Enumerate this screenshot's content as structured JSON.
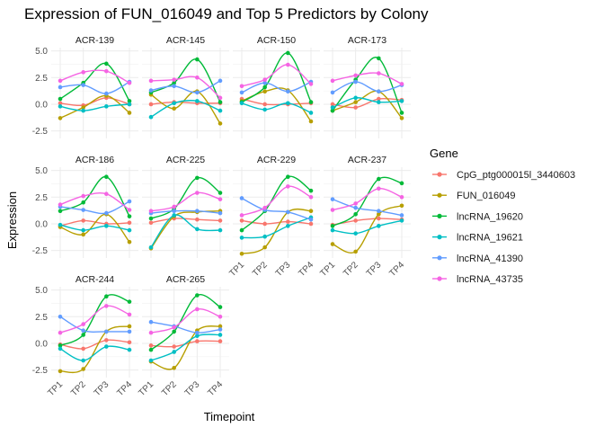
{
  "chart_data": {
    "type": "line",
    "title": "Expression of FUN_016049 and Top 5 Predictors by Colony",
    "xlabel": "Timepoint",
    "ylabel": "Expression",
    "x": [
      "TP1",
      "TP2",
      "TP3",
      "TP4"
    ],
    "ylim": [
      -3.2,
      5.3
    ],
    "yticks": [
      -2.5,
      0.0,
      2.5,
      5.0
    ],
    "ytick_labels": [
      "-2.5",
      "0.0",
      "2.5",
      "5.0"
    ],
    "grid": true,
    "legend_title": "Gene",
    "legend_position": "right",
    "genes": [
      {
        "name": "CpG_ptg000015l_3440603",
        "color": "#F8766D"
      },
      {
        "name": "FUN_016049",
        "color": "#B79F00"
      },
      {
        "name": "lncRNA_19620",
        "color": "#00BA38"
      },
      {
        "name": "lncRNA_19621",
        "color": "#00BFC4"
      },
      {
        "name": "lncRNA_41390",
        "color": "#619CFF"
      },
      {
        "name": "lncRNA_43735",
        "color": "#F564E3"
      }
    ],
    "panels": [
      {
        "colony": "ACR-139",
        "series": {
          "CpG_ptg000015l_3440603": [
            0.1,
            -0.1,
            0.6,
            0.0
          ],
          "FUN_016049": [
            -1.3,
            -0.3,
            0.8,
            -0.8
          ],
          "lncRNA_19620": [
            0.5,
            2.0,
            3.8,
            0.3
          ],
          "lncRNA_19621": [
            -0.2,
            -0.6,
            -0.2,
            0.0
          ],
          "lncRNA_41390": [
            1.6,
            1.8,
            1.0,
            2.1
          ],
          "lncRNA_43735": [
            2.2,
            3.0,
            3.1,
            2.0
          ]
        }
      },
      {
        "colony": "ACR-145",
        "series": {
          "CpG_ptg000015l_3440603": [
            0.0,
            0.2,
            0.1,
            0.1
          ],
          "FUN_016049": [
            0.9,
            -0.4,
            1.2,
            -1.8
          ],
          "lncRNA_19620": [
            1.1,
            2.0,
            4.2,
            0.2
          ],
          "lncRNA_19621": [
            -1.2,
            0.1,
            0.3,
            -0.6
          ],
          "lncRNA_41390": [
            1.3,
            1.7,
            1.1,
            2.2
          ],
          "lncRNA_43735": [
            2.2,
            2.3,
            2.5,
            0.6
          ]
        }
      },
      {
        "colony": "ACR-150",
        "series": {
          "CpG_ptg000015l_3440603": [
            0.5,
            0.0,
            0.0,
            0.1
          ],
          "FUN_016049": [
            0.3,
            1.2,
            1.3,
            -1.6
          ],
          "lncRNA_19620": [
            0.2,
            1.6,
            4.8,
            0.2
          ],
          "lncRNA_19621": [
            0.1,
            -0.5,
            0.1,
            -0.8
          ],
          "lncRNA_41390": [
            1.1,
            2.0,
            1.2,
            2.1
          ],
          "lncRNA_43735": [
            1.7,
            2.3,
            3.7,
            1.9
          ]
        }
      },
      {
        "colony": "ACR-173",
        "series": {
          "CpG_ptg000015l_3440603": [
            0.0,
            -0.3,
            0.5,
            0.4
          ],
          "FUN_016049": [
            -0.6,
            0.2,
            1.2,
            -1.3
          ],
          "lncRNA_19620": [
            -0.6,
            2.3,
            4.3,
            -0.8
          ],
          "lncRNA_19621": [
            -0.3,
            0.6,
            0.2,
            0.3
          ],
          "lncRNA_41390": [
            1.1,
            2.1,
            1.2,
            1.8
          ],
          "lncRNA_43735": [
            2.2,
            2.7,
            2.9,
            1.9
          ]
        }
      },
      {
        "colony": "ACR-186",
        "series": {
          "CpG_ptg000015l_3440603": [
            -0.2,
            0.3,
            0.0,
            0.1
          ],
          "FUN_016049": [
            -0.3,
            -1.0,
            0.9,
            -1.7
          ],
          "lncRNA_19620": [
            1.2,
            2.0,
            4.4,
            0.7
          ],
          "lncRNA_19621": [
            -0.1,
            -0.6,
            -0.2,
            -0.6
          ],
          "lncRNA_41390": [
            1.6,
            1.3,
            1.0,
            2.1
          ],
          "lncRNA_43735": [
            1.8,
            2.6,
            2.8,
            1.3
          ]
        }
      },
      {
        "colony": "ACR-225",
        "series": {
          "CpG_ptg000015l_3440603": [
            0.1,
            0.5,
            0.4,
            0.3
          ],
          "FUN_016049": [
            -2.3,
            0.7,
            1.1,
            1.2
          ],
          "lncRNA_19620": [
            0.5,
            1.4,
            4.3,
            2.9
          ],
          "lncRNA_19621": [
            -2.2,
            0.8,
            -0.5,
            -0.6
          ],
          "lncRNA_41390": [
            1.0,
            1.2,
            1.2,
            1.0
          ],
          "lncRNA_43735": [
            1.2,
            1.6,
            2.9,
            2.3
          ]
        }
      },
      {
        "colony": "ACR-229",
        "series": {
          "CpG_ptg000015l_3440603": [
            0.3,
            0.0,
            0.2,
            0.0
          ],
          "FUN_016049": [
            -2.8,
            -2.2,
            1.1,
            1.2
          ],
          "lncRNA_19620": [
            -0.6,
            1.2,
            4.4,
            3.1
          ],
          "lncRNA_19621": [
            -1.3,
            -1.2,
            -0.2,
            0.6
          ],
          "lncRNA_41390": [
            2.4,
            1.3,
            1.1,
            0.4
          ],
          "lncRNA_43735": [
            0.8,
            1.5,
            3.5,
            2.5
          ]
        }
      },
      {
        "colony": "ACR-237",
        "series": {
          "CpG_ptg000015l_3440603": [
            -0.1,
            0.3,
            0.5,
            0.4
          ],
          "FUN_016049": [
            -1.9,
            -2.6,
            0.9,
            1.7
          ],
          "lncRNA_19620": [
            -0.2,
            0.9,
            4.2,
            3.8
          ],
          "lncRNA_19621": [
            -0.6,
            -0.9,
            -0.2,
            0.3
          ],
          "lncRNA_41390": [
            2.3,
            1.5,
            1.2,
            0.8
          ],
          "lncRNA_43735": [
            1.3,
            1.9,
            3.3,
            2.5
          ]
        }
      },
      {
        "colony": "ACR-244",
        "series": {
          "CpG_ptg000015l_3440603": [
            -0.1,
            -0.5,
            0.3,
            0.1
          ],
          "FUN_016049": [
            -2.6,
            -2.4,
            1.1,
            1.6
          ],
          "lncRNA_19620": [
            -0.2,
            0.8,
            4.4,
            3.9
          ],
          "lncRNA_19621": [
            -0.5,
            -1.6,
            -0.3,
            -0.6
          ],
          "lncRNA_41390": [
            2.5,
            1.2,
            1.1,
            1.1
          ],
          "lncRNA_43735": [
            1.0,
            1.8,
            3.5,
            2.7
          ]
        }
      },
      {
        "colony": "ACR-265",
        "series": {
          "CpG_ptg000015l_3440603": [
            -0.2,
            -0.3,
            0.2,
            0.2
          ],
          "FUN_016049": [
            -1.7,
            -2.3,
            1.2,
            1.6
          ],
          "lncRNA_19620": [
            -0.6,
            1.1,
            4.5,
            3.4
          ],
          "lncRNA_19621": [
            -1.6,
            -0.8,
            0.7,
            0.8
          ],
          "lncRNA_41390": [
            2.0,
            1.6,
            1.0,
            1.3
          ],
          "lncRNA_43735": [
            1.0,
            1.5,
            3.2,
            2.5
          ]
        }
      }
    ]
  }
}
